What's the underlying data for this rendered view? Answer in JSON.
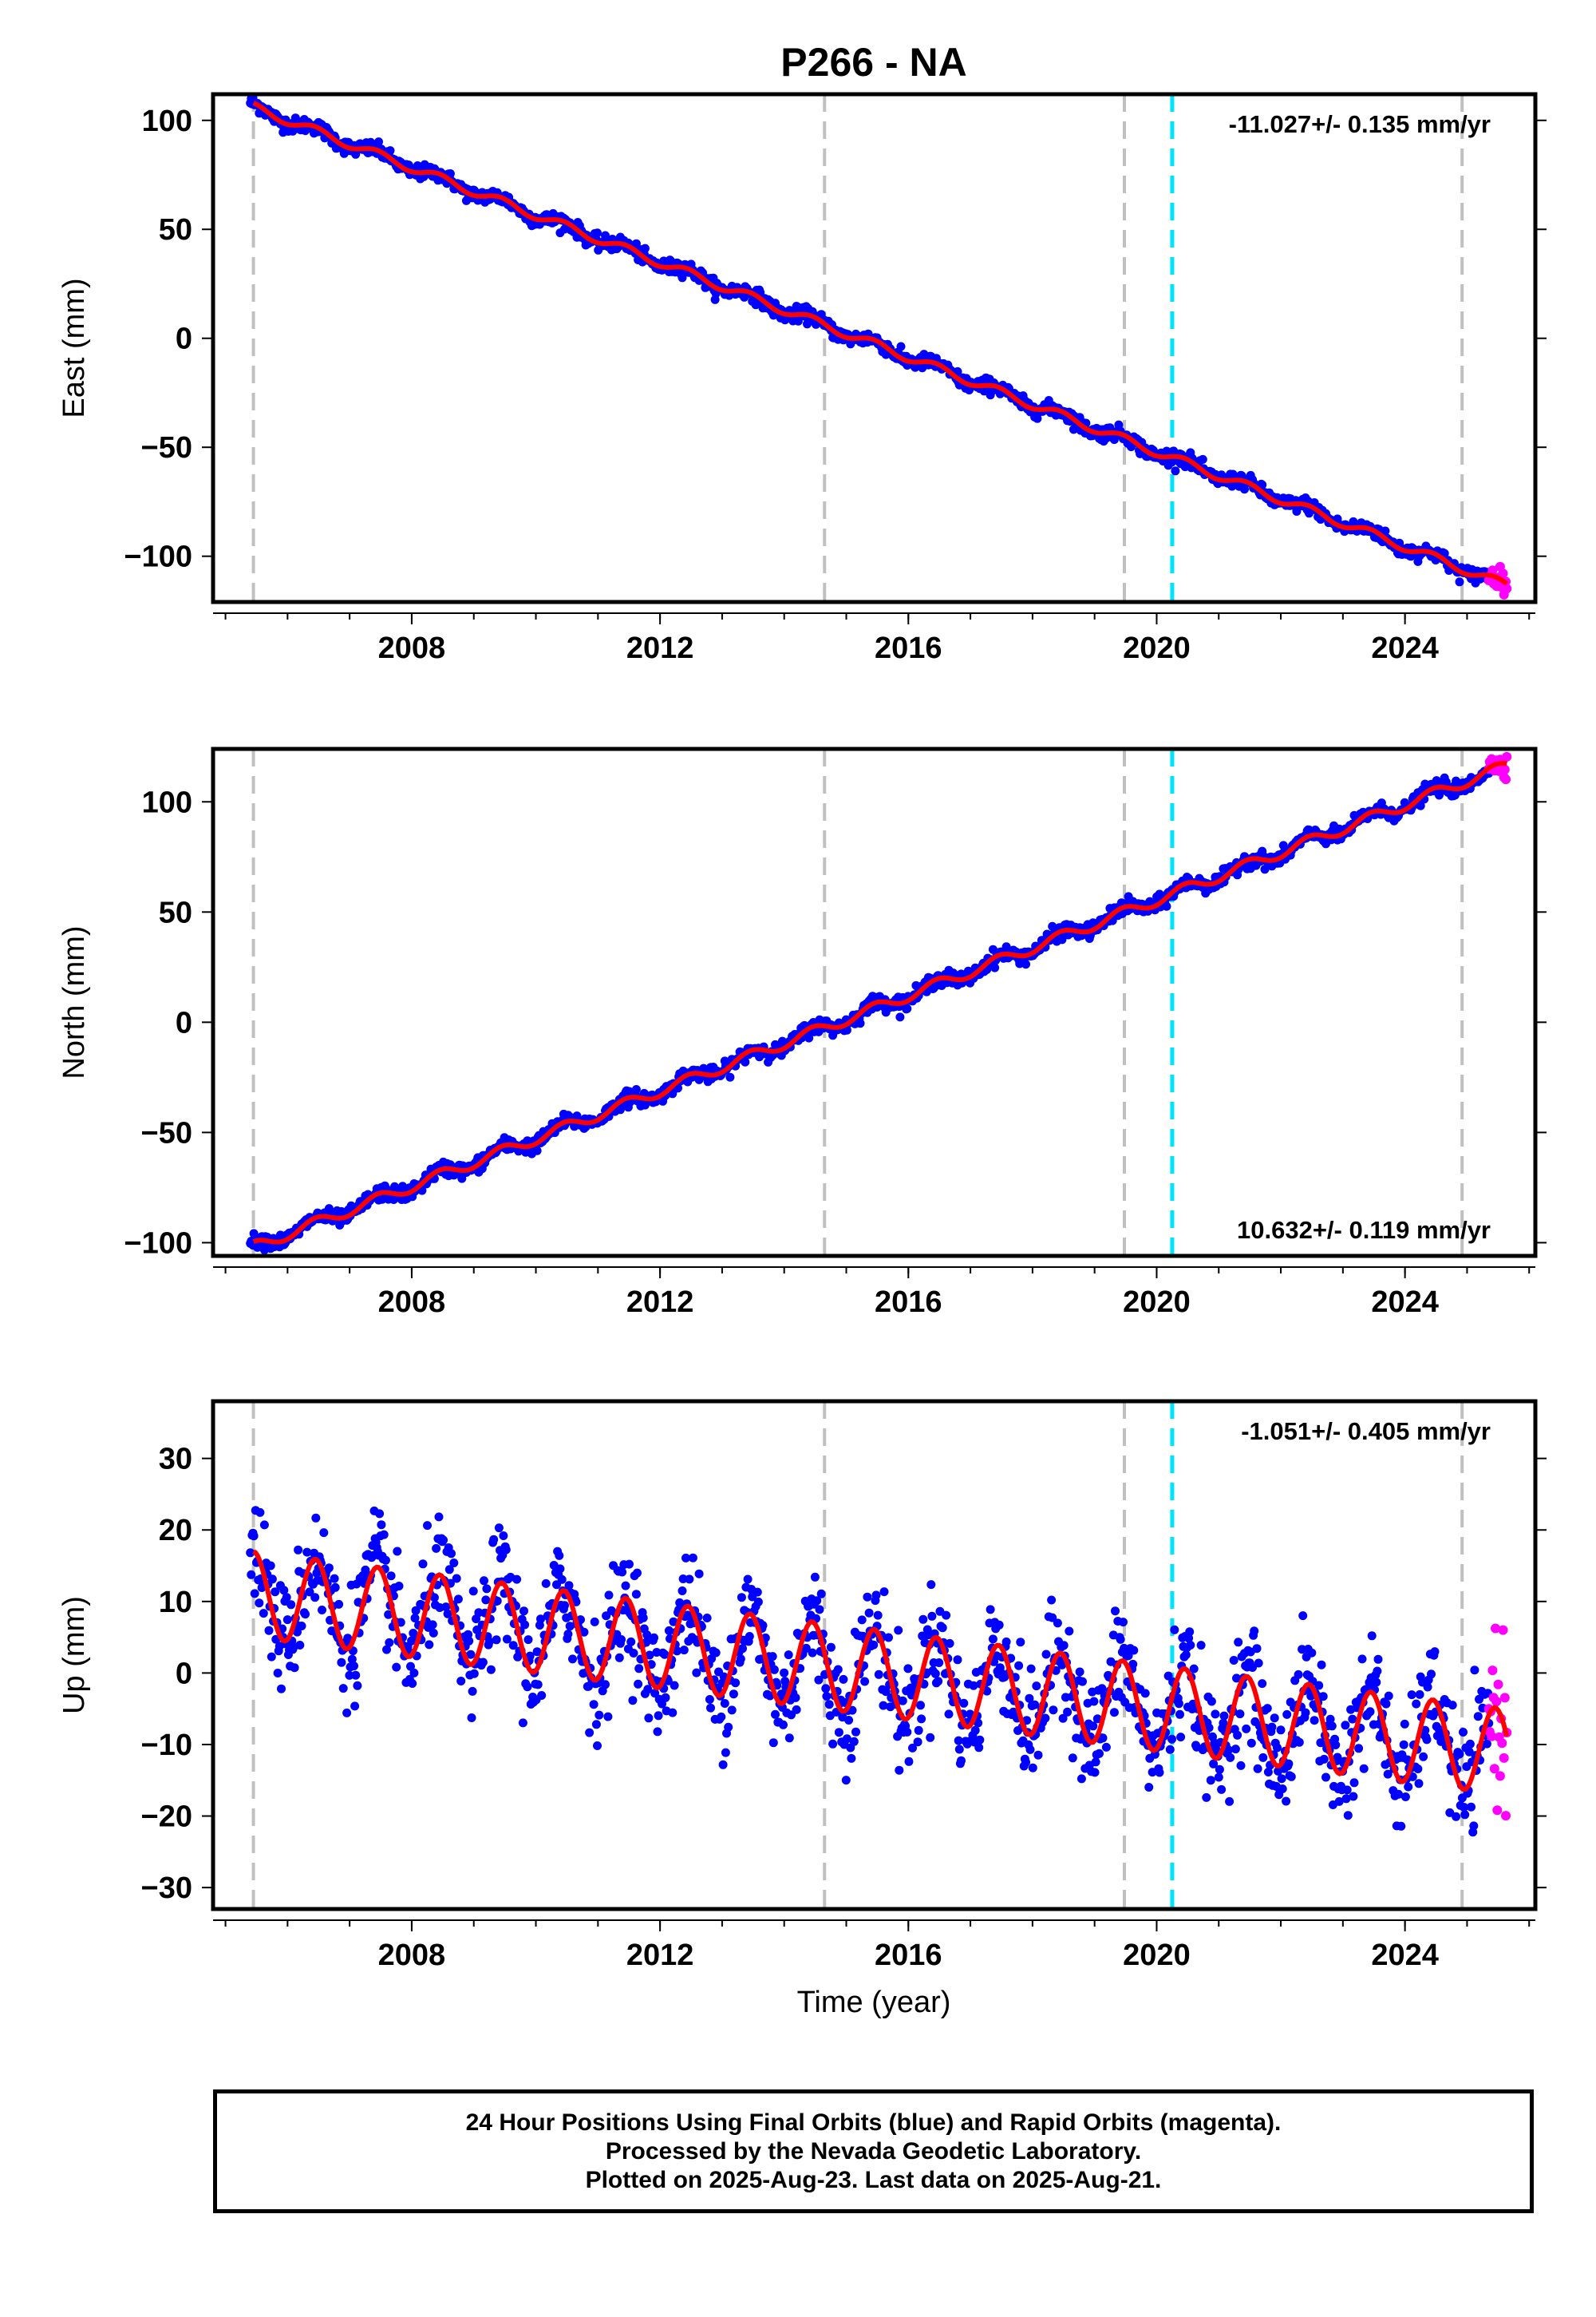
{
  "title": "P266 - NA",
  "xlabel": "Time (year)",
  "colors": {
    "final_orbits": "#0000ff",
    "rapid_orbits": "#ff00ff",
    "model_fit": "#ff0000",
    "event_line": "#c0c0c0",
    "highlight_line": "#00e5ff"
  },
  "chart_data": [
    {
      "type": "scatter",
      "panel": "east",
      "ylabel": "East (mm)",
      "xlim": [
        2004.8,
        2026.1
      ],
      "ylim": [
        -121,
        112
      ],
      "xticks": [
        2008,
        2012,
        2016,
        2020,
        2024
      ],
      "yticks": [
        100,
        50,
        0,
        -50,
        -100
      ],
      "xtick_labels": [
        "2008",
        "2012",
        "2016",
        "2020",
        "2024"
      ],
      "ytick_labels": [
        "100",
        "50",
        "0",
        "−50",
        "−100"
      ],
      "rate_label": "-11.027+/- 0.135 mm/yr",
      "rate_position": "top-right",
      "event_lines": [
        2005.45,
        2014.65,
        2019.48,
        2024.92
      ],
      "highlight_lines": [
        2020.25
      ],
      "trend": {
        "start_year": 2005.45,
        "start_value": 106,
        "end_year": 2025.6,
        "end_value": -113
      },
      "seasonal_amplitude": 2,
      "scatter_spread": 3,
      "series": [
        {
          "name": "Final Orbits",
          "color": "blue",
          "x_range": [
            2005.4,
            2025.35
          ]
        },
        {
          "name": "Rapid Orbits",
          "color": "magenta",
          "x_range": [
            2025.35,
            2025.64
          ]
        },
        {
          "name": "Model",
          "color": "red",
          "x_range": [
            2005.45,
            2025.64
          ]
        }
      ]
    },
    {
      "type": "scatter",
      "panel": "north",
      "ylabel": "North (mm)",
      "xlim": [
        2004.8,
        2026.1
      ],
      "ylim": [
        -106,
        124
      ],
      "xticks": [
        2008,
        2012,
        2016,
        2020,
        2024
      ],
      "yticks": [
        100,
        50,
        0,
        -50,
        -100
      ],
      "xtick_labels": [
        "2008",
        "2012",
        "2016",
        "2020",
        "2024"
      ],
      "ytick_labels": [
        "100",
        "50",
        "0",
        "−50",
        "−100"
      ],
      "rate_label": "10.632+/- 0.119 mm/yr",
      "rate_position": "bottom-right",
      "event_lines": [
        2005.45,
        2014.65,
        2019.48,
        2024.92
      ],
      "highlight_lines": [
        2020.25
      ],
      "trend": {
        "start_year": 2005.45,
        "start_value": -102,
        "end_year": 2025.6,
        "end_value": 116
      },
      "seasonal_amplitude": 2.5,
      "scatter_spread": 3,
      "series": [
        {
          "name": "Final Orbits",
          "color": "blue",
          "x_range": [
            2005.4,
            2025.35
          ]
        },
        {
          "name": "Rapid Orbits",
          "color": "magenta",
          "x_range": [
            2025.35,
            2025.64
          ]
        },
        {
          "name": "Model",
          "color": "red",
          "x_range": [
            2005.45,
            2025.64
          ]
        }
      ]
    },
    {
      "type": "scatter",
      "panel": "up",
      "ylabel": "Up (mm)",
      "xlim": [
        2004.8,
        2026.1
      ],
      "ylim": [
        -33,
        38
      ],
      "xticks": [
        2008,
        2012,
        2016,
        2020,
        2024
      ],
      "yticks": [
        30,
        20,
        10,
        0,
        -10,
        -20,
        -30
      ],
      "xtick_labels": [
        "2008",
        "2012",
        "2016",
        "2020",
        "2024"
      ],
      "ytick_labels": [
        "30",
        "20",
        "10",
        "0",
        "−10",
        "−20",
        "−30"
      ],
      "rate_label": "-1.051+/- 0.405 mm/yr",
      "rate_position": "top-right",
      "event_lines": [
        2005.45,
        2014.65,
        2019.48,
        2024.92
      ],
      "highlight_lines": [
        2020.25
      ],
      "trend": {
        "start_year": 2005.45,
        "start_value": 11,
        "end_year": 2025.6,
        "end_value": -11
      },
      "seasonal_amplitude": 6,
      "scatter_spread": 7,
      "series": [
        {
          "name": "Final Orbits",
          "color": "blue",
          "x_range": [
            2005.4,
            2025.35
          ]
        },
        {
          "name": "Rapid Orbits",
          "color": "magenta",
          "x_range": [
            2025.35,
            2025.64
          ]
        },
        {
          "name": "Model",
          "color": "red",
          "x_range": [
            2005.45,
            2025.64
          ]
        }
      ]
    }
  ],
  "footer": {
    "line1": "24 Hour Positions Using Final Orbits (blue) and Rapid Orbits (magenta).",
    "line2": "Processed by the Nevada Geodetic Laboratory.",
    "line3": "Plotted on 2025-Aug-23. Last data on 2025-Aug-21."
  }
}
